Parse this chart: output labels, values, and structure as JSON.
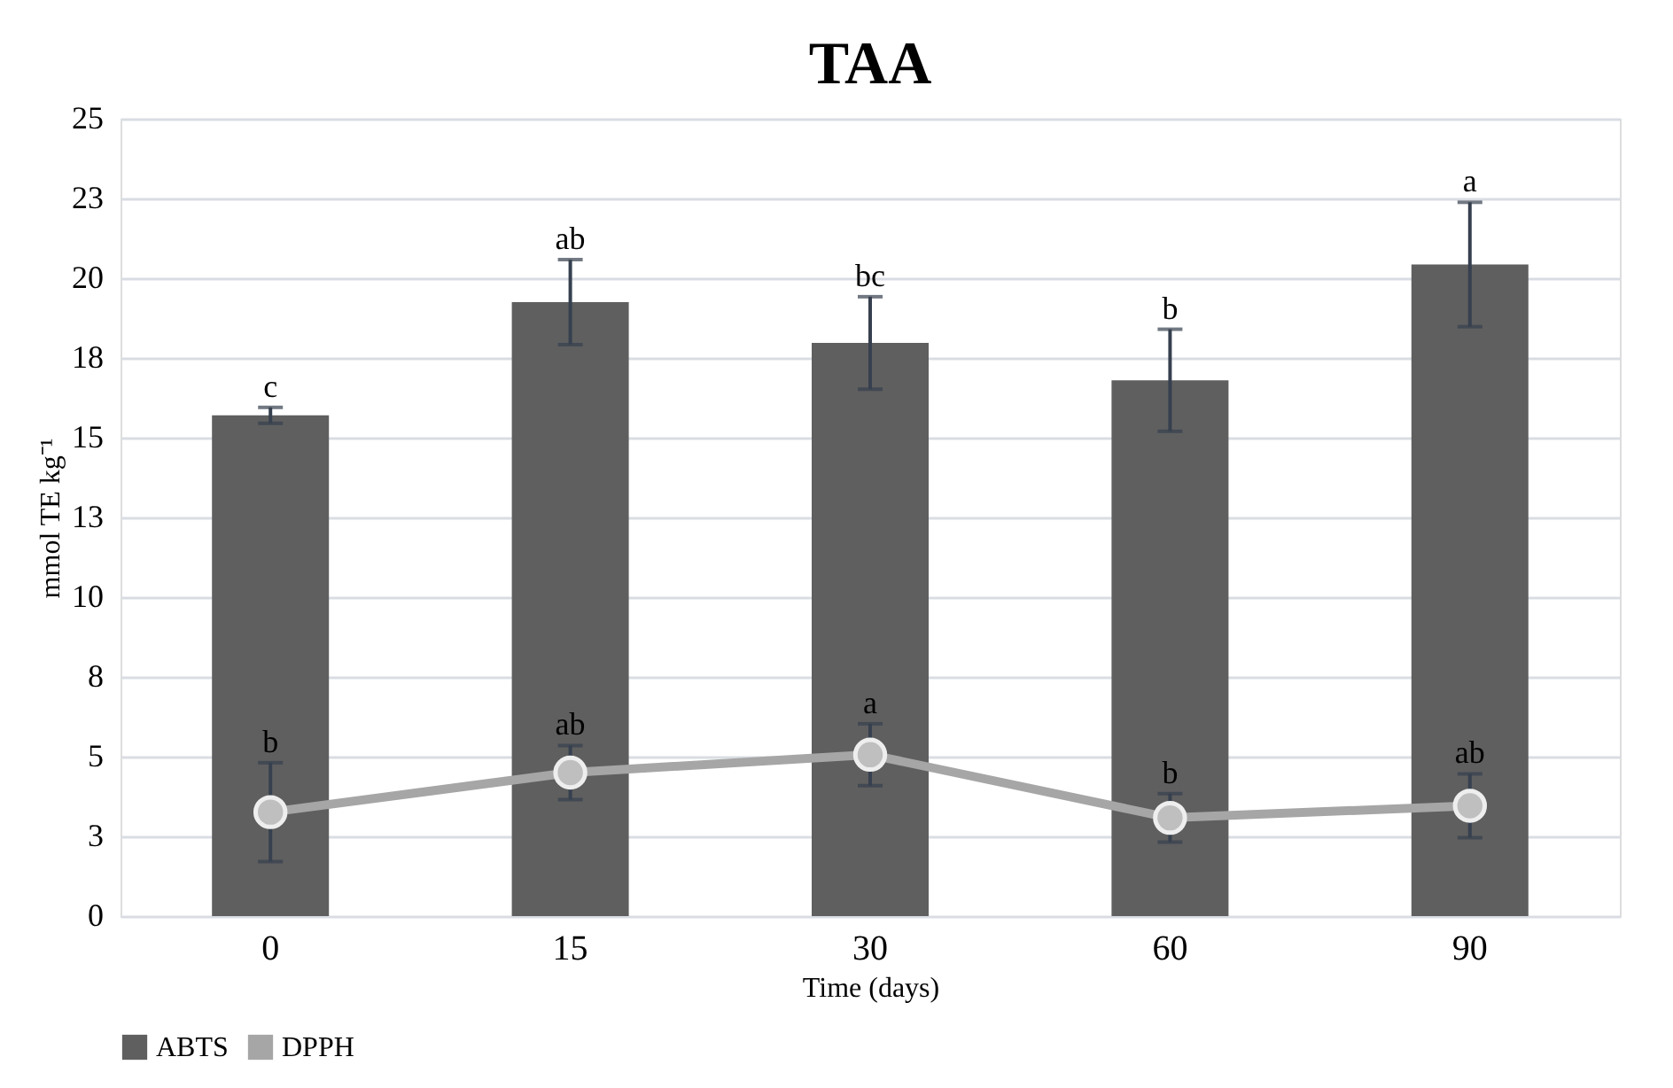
{
  "chart_data": {
    "type": "bar",
    "title": "TAA",
    "xlabel": "Time (days)",
    "ylabel": "mmol TE kg⁻¹",
    "categories": [
      "0",
      "15",
      "30",
      "60",
      "90"
    ],
    "series": [
      {
        "name": "ABTS",
        "color": "#5f5f5f",
        "values": [
          15.7,
          19.25,
          17.97,
          16.8,
          20.43
        ],
        "errors": [
          0.25,
          1.33,
          1.45,
          1.6,
          1.95
        ]
      },
      {
        "name": "DPPH",
        "type": "line",
        "color": "#a6a6a6",
        "marker": "circle",
        "values": [
          3.26,
          4.5,
          5.06,
          3.08,
          3.46
        ],
        "errors": [
          1.55,
          0.85,
          0.97,
          0.76,
          1.0
        ]
      }
    ],
    "ylim": [
      0,
      25
    ],
    "yticks": [
      0,
      {
        "value": 2.5,
        "label": "3"
      },
      5,
      {
        "value": 7.5,
        "label": "8"
      },
      10,
      {
        "value": 12.5,
        "label": "13"
      },
      15,
      {
        "value": 17.5,
        "label": "18"
      },
      20,
      {
        "value": 22.5,
        "label": "23"
      },
      25
    ],
    "grid": "y",
    "legend": "bottom",
    "annotations": [
      {
        "text": "c",
        "x": "0",
        "y": 15.95
      },
      {
        "text": "ab",
        "x": "15",
        "y": 20.58
      },
      {
        "text": "bc",
        "x": "30",
        "y": 19.42
      },
      {
        "text": "b",
        "x": "60",
        "y": 18.4
      },
      {
        "text": "a",
        "x": "90",
        "y": 22.38
      },
      {
        "text": "b",
        "x": "0",
        "y": 4.81
      },
      {
        "text": "ab",
        "x": "15",
        "y": 5.35
      },
      {
        "text": "a",
        "x": "30",
        "y": 6.03
      },
      {
        "text": "b",
        "x": "60",
        "y": 3.84
      },
      {
        "text": "ab",
        "x": "90",
        "y": 4.46
      }
    ]
  }
}
